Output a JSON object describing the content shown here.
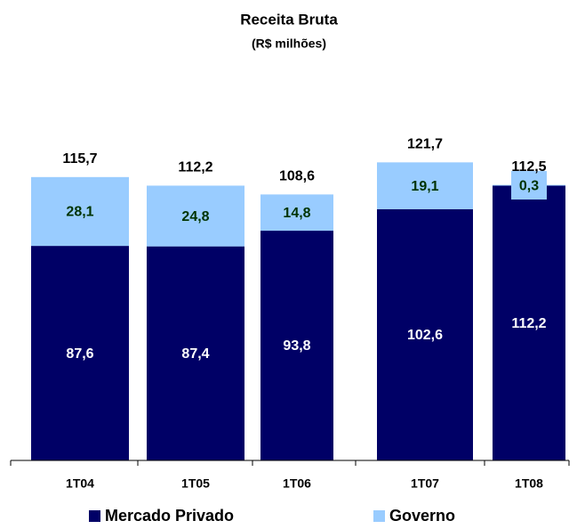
{
  "chart_data": {
    "type": "stacked_bar",
    "title": "Receita Bruta",
    "subtitle": "(R$ milhões)",
    "categories": [
      "1T04",
      "1T05",
      "1T06",
      "1T07",
      "1T08"
    ],
    "series": [
      {
        "name": "Mercado Privado",
        "color": "#000066",
        "values": [
          87.6,
          87.4,
          93.8,
          102.6,
          112.2
        ],
        "value_labels": [
          "87,6",
          "87,4",
          "93,8",
          "102,6",
          "112,2"
        ]
      },
      {
        "name": "Governo",
        "color": "#99ccff",
        "values": [
          28.1,
          24.8,
          14.8,
          19.1,
          0.3
        ],
        "value_labels": [
          "28,1",
          "24,8",
          "14,8",
          "19,1",
          "0,3"
        ]
      }
    ],
    "totals": {
      "values": [
        115.7,
        112.2,
        108.6,
        121.7,
        112.5
      ],
      "value_labels": [
        "115,7",
        "112,2",
        "108,6",
        "121,7",
        "112,5"
      ]
    }
  }
}
